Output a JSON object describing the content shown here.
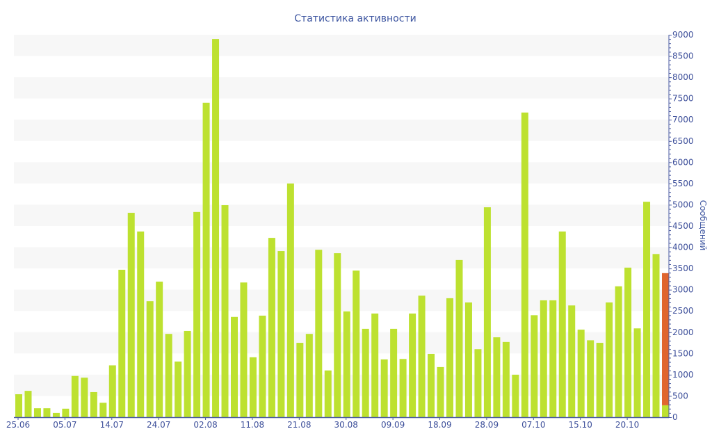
{
  "chart_data": {
    "type": "bar",
    "stacked": true,
    "title": "Статистика активности",
    "xlabel": "",
    "ylabel": "Сообщений",
    "ylim": [
      0,
      9000
    ],
    "y_ticks": [
      0,
      500,
      1000,
      1500,
      2000,
      2500,
      3000,
      3500,
      4000,
      4500,
      5000,
      5500,
      6000,
      6500,
      7000,
      7500,
      8000,
      8500,
      9000
    ],
    "y_axis_side": "right",
    "grid": "alternating horizontal bands",
    "x_tick_labels": [
      {
        "index": 0,
        "label": "25.06"
      },
      {
        "index": 5,
        "label": "05.07"
      },
      {
        "index": 10,
        "label": "14.07"
      },
      {
        "index": 15,
        "label": "24.07"
      },
      {
        "index": 20,
        "label": "02.08"
      },
      {
        "index": 25,
        "label": "11.08"
      },
      {
        "index": 30,
        "label": "21.08"
      },
      {
        "index": 35,
        "label": "30.08"
      },
      {
        "index": 40,
        "label": "09.09"
      },
      {
        "index": 45,
        "label": "18.09"
      },
      {
        "index": 50,
        "label": "28.09"
      },
      {
        "index": 55,
        "label": "07.10"
      },
      {
        "index": 60,
        "label": "15.10"
      },
      {
        "index": 65,
        "label": "20.10"
      }
    ],
    "series": [
      {
        "color": "#bde130",
        "values": [
          540,
          620,
          210,
          210,
          100,
          200,
          970,
          930,
          590,
          340,
          1220,
          3470,
          4810,
          4370,
          2730,
          3190,
          1960,
          1310,
          2030,
          4830,
          7400,
          8900,
          4990,
          2360,
          3170,
          1410,
          2390,
          4220,
          3910,
          5500,
          1750,
          1960,
          3940,
          1100,
          3860,
          2490,
          3450,
          2080,
          2440,
          1360,
          2080,
          1370,
          2440,
          2860,
          1490,
          1180,
          2800,
          3700,
          2700,
          1600,
          4940,
          1880,
          1770,
          1000,
          7170,
          2400,
          2750,
          2750,
          4370,
          2630,
          2060,
          1810,
          1750,
          2700,
          3080,
          3520,
          2090,
          5070,
          3840,
          280
        ]
      },
      {
        "color": "#e0652e",
        "values": [
          0,
          0,
          0,
          0,
          0,
          0,
          0,
          0,
          0,
          0,
          0,
          0,
          0,
          0,
          0,
          0,
          0,
          0,
          0,
          0,
          0,
          0,
          0,
          0,
          0,
          0,
          0,
          0,
          0,
          0,
          0,
          0,
          0,
          0,
          0,
          0,
          0,
          0,
          0,
          0,
          0,
          0,
          0,
          0,
          0,
          0,
          0,
          0,
          0,
          0,
          0,
          0,
          0,
          0,
          0,
          0,
          0,
          0,
          0,
          0,
          0,
          0,
          0,
          0,
          0,
          0,
          0,
          0,
          0,
          3110
        ]
      }
    ],
    "band_color": "#f7f7f7",
    "axis_color": "#4a5aa0"
  }
}
